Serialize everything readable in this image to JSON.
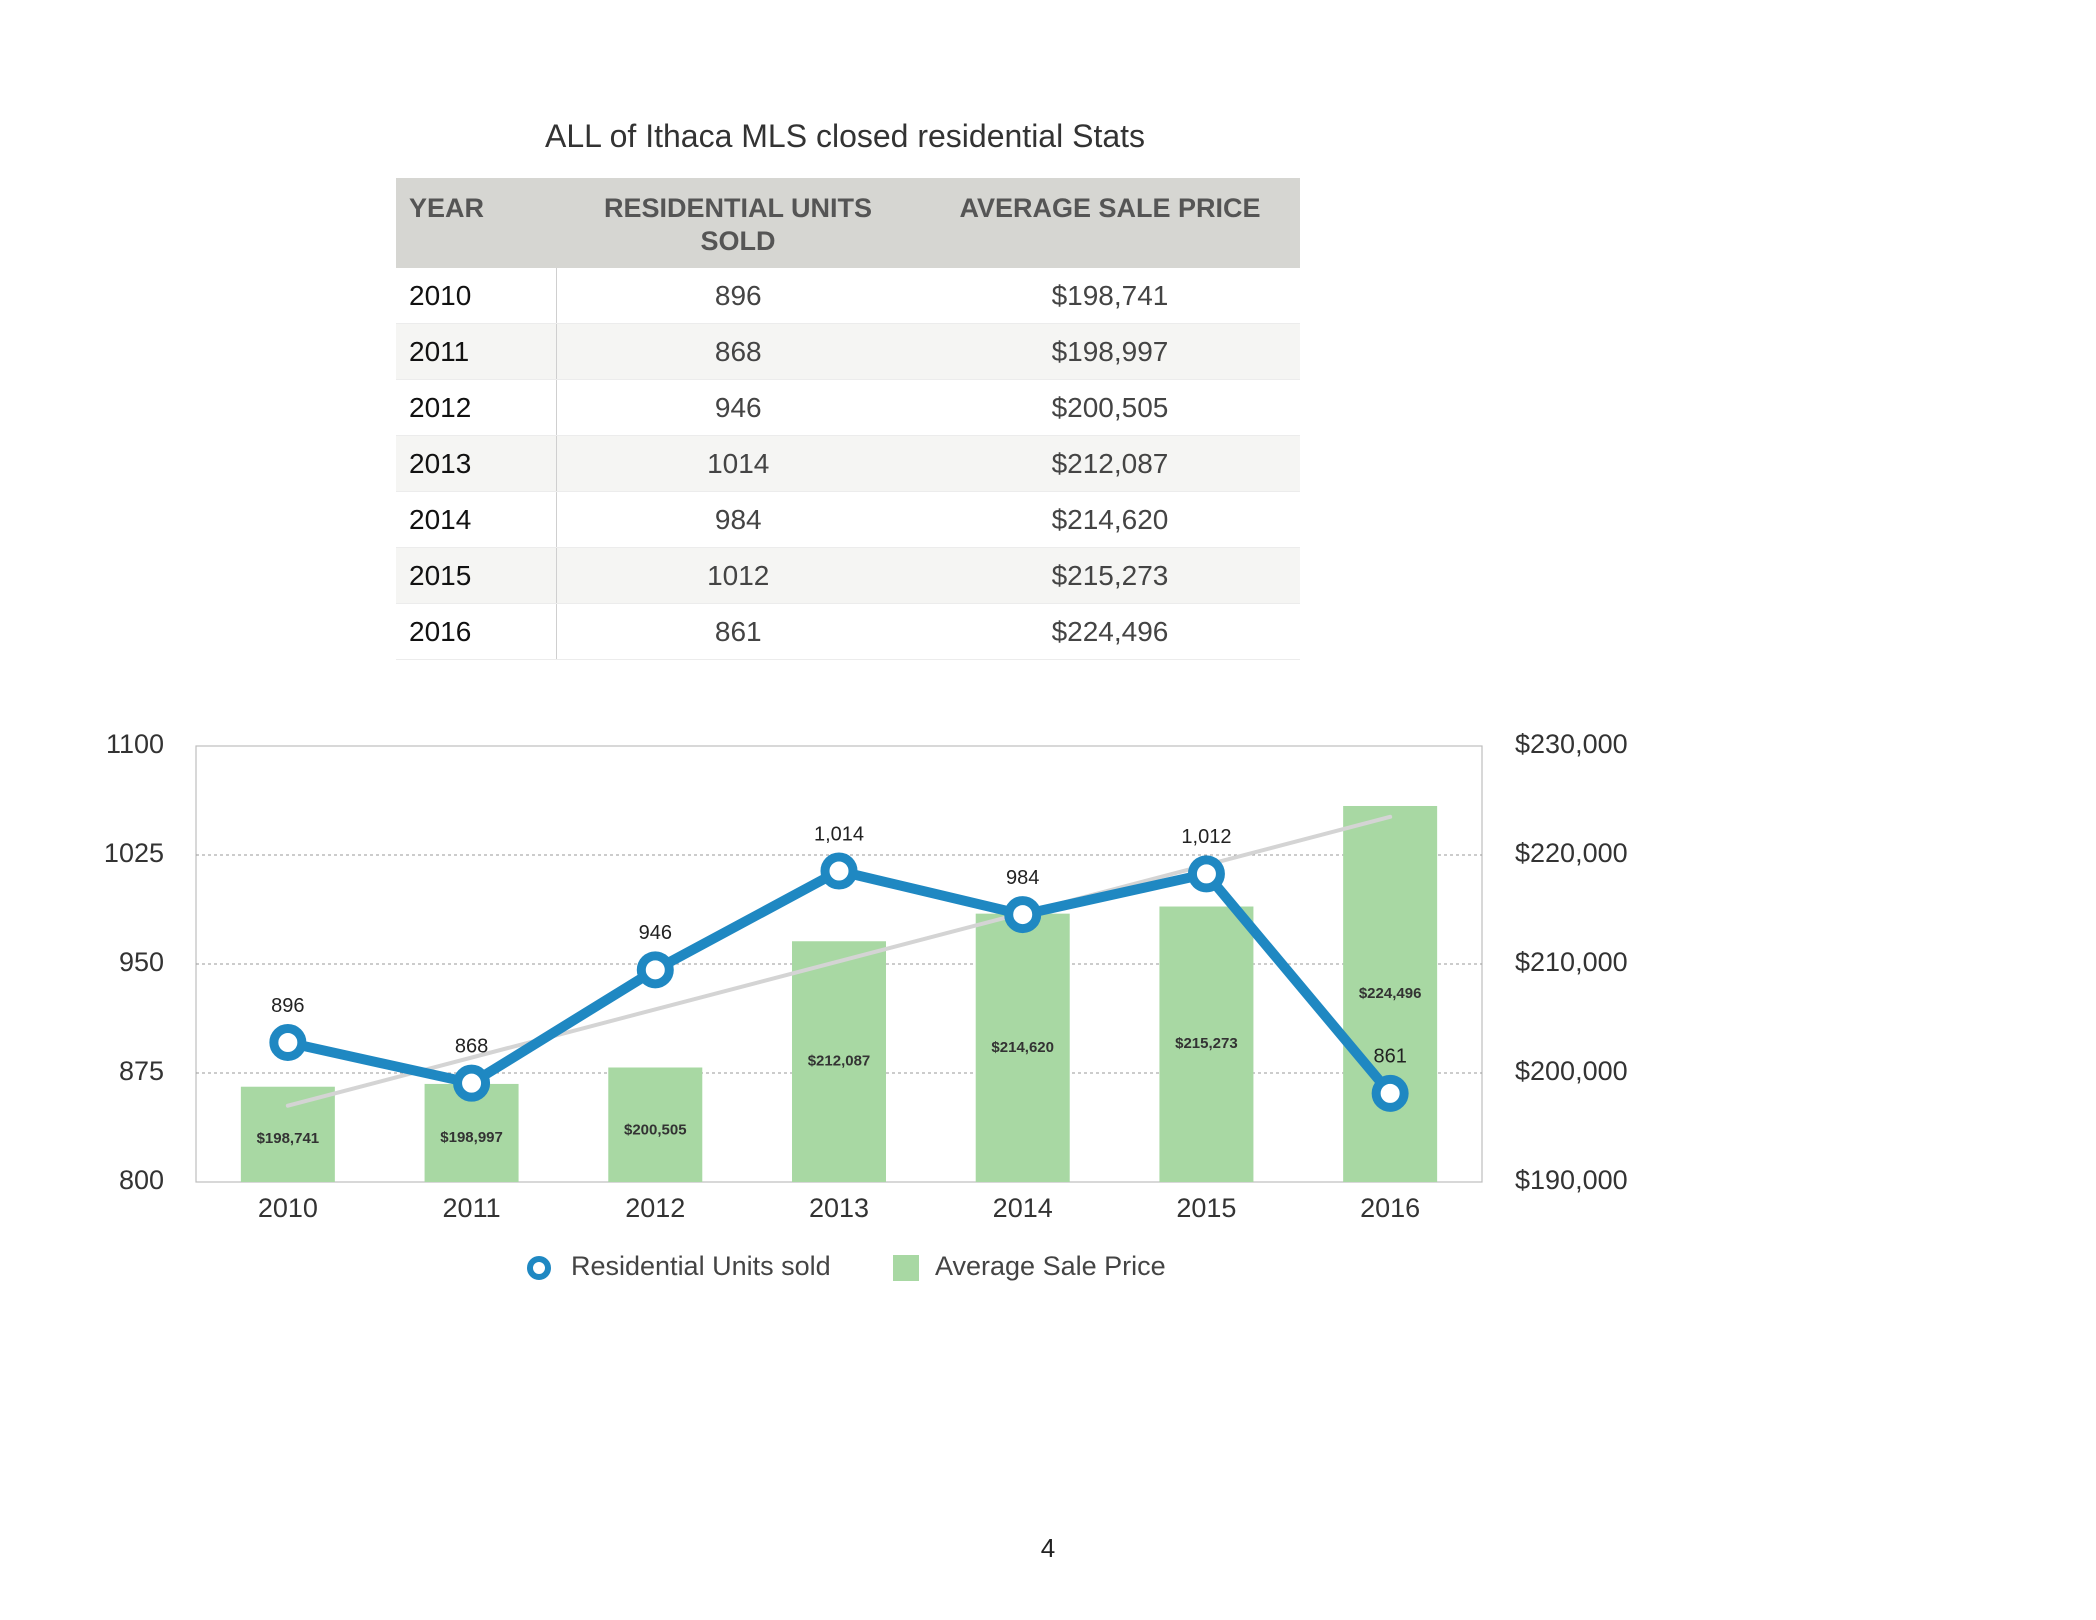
{
  "title": "ALL of Ithaca MLS closed residential Stats",
  "table": {
    "headers": [
      "YEAR",
      "RESIDENTIAL UNITS SOLD",
      "AVERAGE SALE PRICE"
    ],
    "rows": [
      [
        "2010",
        "896",
        "$198,741"
      ],
      [
        "2011",
        "868",
        "$198,997"
      ],
      [
        "2012",
        "946",
        "$200,505"
      ],
      [
        "2013",
        "1014",
        "$212,087"
      ],
      [
        "2014",
        "984",
        "$214,620"
      ],
      [
        "2015",
        "1012",
        "$215,273"
      ],
      [
        "2016",
        "861",
        "$224,496"
      ]
    ]
  },
  "chart_data": {
    "type": "bar",
    "categories": [
      "2010",
      "2011",
      "2012",
      "2013",
      "2014",
      "2015",
      "2016"
    ],
    "series": [
      {
        "name": "Residential Units sold",
        "type": "line",
        "axis": "left",
        "values": [
          896,
          868,
          946,
          1014,
          984,
          1012,
          861
        ],
        "labels": [
          "896",
          "868",
          "946",
          "1,014",
          "984",
          "1,012",
          "861"
        ],
        "color": "#1f88c2"
      },
      {
        "name": "Average Sale Price",
        "type": "bar",
        "axis": "right",
        "values": [
          198741,
          198997,
          200505,
          212087,
          214620,
          215273,
          224496
        ],
        "labels": [
          "$198,741",
          "$198,997",
          "$200,505",
          "$212,087",
          "$214,620",
          "$215,273",
          "$224,496"
        ],
        "color": "#a8d8a3"
      }
    ],
    "trendline": {
      "series": "Average Sale Price",
      "start": 197000,
      "end": 223500,
      "color": "#d4d4d4"
    },
    "y_left": {
      "range": [
        800,
        1100
      ],
      "ticks": [
        800,
        875,
        950,
        1025,
        1100
      ],
      "tick_labels": [
        "800",
        "875",
        "950",
        "1025",
        "1100"
      ]
    },
    "y_right": {
      "range": [
        190000,
        230000
      ],
      "tick_labels": [
        "$190,000",
        "$200,000",
        "$210,000",
        "$220,000",
        "$230,000"
      ]
    },
    "grid": "horizontal dashed",
    "legend_position": "bottom"
  },
  "page_number": "4"
}
